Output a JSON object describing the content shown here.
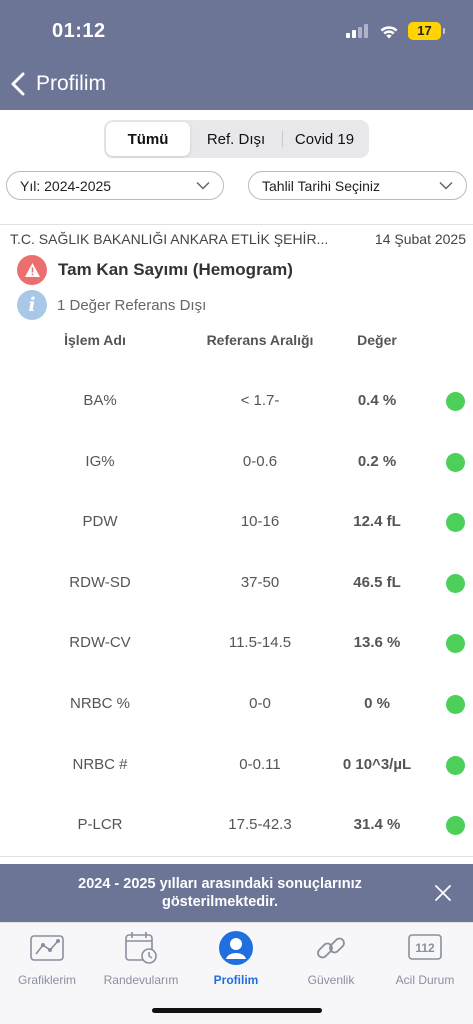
{
  "status_bar": {
    "time": "01:12",
    "battery": "17"
  },
  "nav": {
    "title": "Profilim"
  },
  "segments": [
    {
      "label": "Tümü",
      "active": true
    },
    {
      "label": "Ref. Dışı",
      "active": false
    },
    {
      "label": "Covid 19",
      "active": false
    }
  ],
  "filters": {
    "year": "Yıl: 2024-2025",
    "date": "Tahlil Tarihi Seçiniz"
  },
  "result": {
    "institution": "T.C. SAĞLIK BAKANLIĞI ANKARA ETLİK ŞEHİR...",
    "date": "14 Şubat 2025",
    "test_title": "Tam Kan Sayımı (Hemogram)",
    "info": "1 Değer Referans Dışı",
    "columns": {
      "name": "İşlem Adı",
      "range": "Referans Aralığı",
      "value": "Değer"
    },
    "rows": [
      {
        "name": "BA%",
        "range": "< 1.7-",
        "value": "0.4 %",
        "status": "normal"
      },
      {
        "name": "IG%",
        "range": "0-0.6",
        "value": "0.2 %",
        "status": "normal"
      },
      {
        "name": "PDW",
        "range": "10-16",
        "value": "12.4 fL",
        "status": "normal"
      },
      {
        "name": "RDW-SD",
        "range": "37-50",
        "value": "46.5 fL",
        "status": "normal"
      },
      {
        "name": "RDW-CV",
        "range": "11.5-14.5",
        "value": "13.6 %",
        "status": "normal"
      },
      {
        "name": "NRBC %",
        "range": "0-0",
        "value": "0 %",
        "status": "normal"
      },
      {
        "name": "NRBC #",
        "range": "0-0.11",
        "value": "0 10^3/µL",
        "status": "normal"
      },
      {
        "name": "P-LCR",
        "range": "17.5-42.3",
        "value": "31.4 %",
        "status": "normal"
      }
    ]
  },
  "banner": {
    "text": "2024 - 2025 yılları arasındaki sonuçlarınız gösterilmektedir."
  },
  "tabs": [
    {
      "label": "Grafiklerim",
      "icon": "chart-icon"
    },
    {
      "label": "Randevularım",
      "icon": "calendar-icon"
    },
    {
      "label": "Profilim",
      "icon": "profile-icon",
      "active": true
    },
    {
      "label": "Güvenlik",
      "icon": "link-icon"
    },
    {
      "label": "Acil Durum",
      "icon": "emergency-112-icon",
      "badge": "112"
    }
  ],
  "colors": {
    "header": "#6c7596",
    "status_ok": "#4cd05a",
    "warning": "#ec6f6f",
    "info": "#a9c8e8",
    "active_tab": "#1f6fe0"
  }
}
